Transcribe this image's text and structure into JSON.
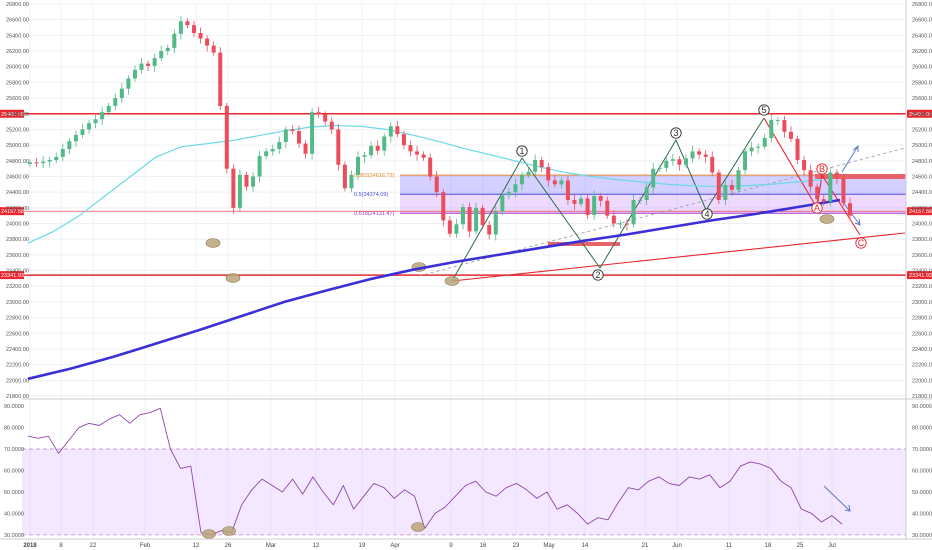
{
  "chart_data": [
    {
      "type": "candlestick",
      "title": "",
      "ylim": [
        21800,
        26800
      ],
      "y_ticks": [
        "26800.00",
        "26600.00",
        "26400.00",
        "26200.00",
        "26000.00",
        "25800.00",
        "25600.00",
        "25400.00",
        "25200.00",
        "25000.00",
        "24800.00",
        "24600.00",
        "24400.00",
        "24200.00",
        "24000.00",
        "23800.00",
        "23600.00",
        "23400.00",
        "23200.00",
        "23000.00",
        "22800.00",
        "22600.00",
        "22400.00",
        "22200.00",
        "22000.00",
        "21800.00"
      ],
      "x_ticks": [
        "2018",
        "8",
        "22",
        "Feb",
        "12",
        "26",
        "Mar",
        "12",
        "19",
        "Apr",
        "9",
        "16",
        "23",
        "May",
        "14",
        "21",
        "Jun",
        "11",
        "18",
        "25",
        "Jul"
      ],
      "horizontal_levels": [
        {
          "value": 25400,
          "label": "25400.00",
          "color": "#e8262e"
        },
        {
          "value": 23341.93,
          "label": "23341.93",
          "color": "#e8262e"
        },
        {
          "value": 24157.58,
          "label": "24157.58",
          "color": "#e8262e"
        }
      ],
      "fibonacci": [
        {
          "label": "0.382(24616.72)",
          "value": 24616.72,
          "color": "#e8872e"
        },
        {
          "label": "0.5(24374.09)",
          "value": 24374.09,
          "color": "#4a4adf"
        },
        {
          "label": "0.618(24131.47)",
          "value": 24131.47,
          "color": "#a43ad0"
        }
      ],
      "wave_labels": [
        "1",
        "2",
        "3",
        "4",
        "5",
        "A",
        "B",
        "C"
      ],
      "series": [
        {
          "name": "",
          "type": "candles",
          "values": [
            24780,
            24770,
            24790,
            24810,
            24850,
            24950,
            25050,
            25130,
            25200,
            25280,
            25330,
            25420,
            25500,
            25600,
            25720,
            25850,
            25960,
            26040,
            26010,
            26110,
            26200,
            26240,
            26420,
            26580,
            26530,
            26430,
            26360,
            26270,
            26180,
            25500,
            24700,
            24200,
            24620,
            24470,
            24600,
            24860,
            24920,
            24950,
            25040,
            25200,
            25180,
            25020,
            24890,
            25420,
            25390,
            25300,
            25200,
            24750,
            24450,
            24620,
            24850,
            24870,
            24990,
            24930,
            25110,
            25240,
            25140,
            25000,
            24920,
            24880,
            24840,
            24600,
            24400,
            24040,
            23870,
            23990,
            24210,
            23900,
            24200,
            23980,
            23860,
            24150,
            24360,
            24400,
            24500,
            24620,
            24660,
            24810,
            24720,
            24550,
            24500,
            24550,
            24300,
            24250,
            24320,
            24110,
            24350,
            24290,
            24100,
            24000,
            24000,
            23990,
            24300,
            24300,
            24460,
            24700,
            24710,
            24800,
            24820,
            24750,
            24830,
            24920,
            24880,
            24850,
            24650,
            24300,
            24490,
            24430,
            24680,
            24920,
            24970,
            24980,
            25090,
            25320,
            25320,
            25170,
            25080,
            24810,
            24680,
            24470,
            24310,
            24280,
            24650,
            24580,
            24260,
            24100
          ]
        },
        {
          "name": "",
          "type": "moving-average-fast",
          "values": [
            23750,
            23900,
            24100,
            24350,
            24600,
            24850,
            24980,
            25020,
            25060,
            25120,
            25180,
            25230,
            25250,
            25240,
            25200,
            25130,
            25050,
            24960,
            24880,
            24800,
            24720,
            24650,
            24600,
            24560,
            24530,
            24500,
            24480,
            24470,
            24480,
            24500,
            24530,
            24560
          ]
        },
        {
          "name": "",
          "type": "moving-average-slow",
          "values": [
            22020,
            22150,
            22300,
            22470,
            22640,
            22820,
            23000,
            23150,
            23290,
            23410,
            23510,
            23600,
            23690,
            23780,
            23860,
            23950,
            24040,
            24120,
            24210,
            24300
          ]
        }
      ]
    },
    {
      "type": "line",
      "title": "",
      "ylim": [
        29,
        91
      ],
      "y_ticks": [
        "90.0000",
        "80.0000",
        "70.0000",
        "60.0000",
        "50.0000",
        "40.0000",
        "30.0000"
      ],
      "band": [
        30,
        70
      ],
      "series": [
        {
          "name": "",
          "values": [
            76,
            75,
            76,
            68,
            74,
            80,
            82,
            81,
            84,
            86,
            82,
            86,
            87,
            89,
            70,
            61,
            62,
            31,
            30,
            32,
            31,
            44,
            51,
            56,
            53,
            50,
            56,
            49,
            57,
            50,
            44,
            53,
            42,
            48,
            54,
            52,
            47,
            51,
            48,
            33,
            40,
            43,
            48,
            53,
            55,
            50,
            48,
            52,
            54,
            51,
            47,
            50,
            42,
            44,
            40,
            35,
            38,
            37,
            45,
            52,
            51,
            55,
            57,
            54,
            53,
            57,
            56,
            58,
            52,
            55,
            62,
            64,
            63,
            61,
            55,
            52,
            42,
            40,
            36,
            39,
            35
          ]
        }
      ]
    }
  ]
}
